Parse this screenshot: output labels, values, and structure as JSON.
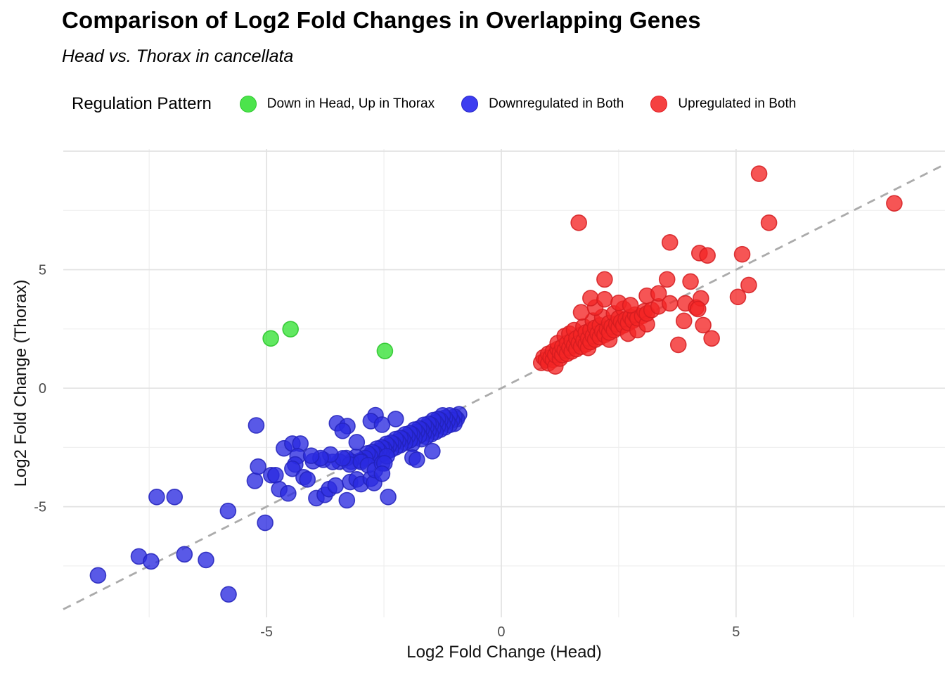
{
  "header": {
    "title": "Comparison of Log2 Fold Changes in Overlapping Genes",
    "subtitle": "Head vs. Thorax in cancellata"
  },
  "legend": {
    "title": "Regulation Pattern",
    "items": [
      {
        "label": "Down in Head, Up in Thorax",
        "color": "#4ce44c",
        "stroke": "#2fca2f"
      },
      {
        "label": "Downregulated in Both",
        "color": "#3d3df0",
        "stroke": "#2424c8"
      },
      {
        "label": "Upregulated in Both",
        "color": "#f54141",
        "stroke": "#e11d24"
      }
    ]
  },
  "colors": {
    "grid_major": "#e2e2e2",
    "grid_minor": "#efefef",
    "identity_line": "#ababab",
    "tick_text": "#4d4d4d",
    "green": "#35e135",
    "blue": "#2a2ae0",
    "red": "#f42525"
  },
  "chart_data": {
    "type": "scatter",
    "title": "Comparison of Log2 Fold Changes in Overlapping Genes",
    "subtitle": "Head vs. Thorax in cancellata",
    "xlabel": "Log2 Fold Change (Head)",
    "ylabel": "Log2 Fold Change (Thorax)",
    "xlim": [
      -9.33,
      9.45
    ],
    "ylim": [
      -9.67,
      10.09
    ],
    "x_ticks": {
      "values": [
        -5,
        0,
        5
      ],
      "labels": [
        "-5",
        "0",
        "5"
      ]
    },
    "y_ticks": {
      "values": [
        -5,
        0,
        5
      ],
      "labels": [
        "-5",
        "0",
        "5"
      ]
    },
    "x_major_gridlines": [
      -5,
      0,
      5
    ],
    "x_minor_gridlines": [
      -7.5,
      -2.5,
      2.5,
      7.5
    ],
    "y_major_gridlines": [
      -5,
      0,
      5,
      10
    ],
    "y_minor_gridlines": [
      -7.5,
      -2.5,
      2.5,
      7.5
    ],
    "grid": true,
    "legend_position": "top",
    "identity_line": {
      "equation": "y = x",
      "style": "dashed",
      "color": "#ababab"
    },
    "series": [
      {
        "name": "Down in Head, Up in Thorax",
        "fill": "#35e135",
        "stroke": "#28c428",
        "points": [
          [
            -4.91,
            2.1
          ],
          [
            -4.49,
            2.49
          ],
          [
            -2.48,
            1.57
          ]
        ]
      },
      {
        "name": "Downregulated in Both",
        "fill": "#2a2ae0",
        "stroke": "#2222bb",
        "points": [
          [
            -0.9,
            -1.1
          ],
          [
            -0.95,
            -1.3
          ],
          [
            -1.0,
            -1.2
          ],
          [
            -1.0,
            -1.5
          ],
          [
            -1.05,
            -1.35
          ],
          [
            -1.1,
            -1.15
          ],
          [
            -1.1,
            -1.55
          ],
          [
            -1.15,
            -1.4
          ],
          [
            -1.2,
            -1.25
          ],
          [
            -1.2,
            -1.65
          ],
          [
            -1.25,
            -1.15
          ],
          [
            -1.25,
            -1.5
          ],
          [
            -1.3,
            -1.35
          ],
          [
            -1.3,
            -1.75
          ],
          [
            -1.35,
            -1.3
          ],
          [
            -1.35,
            -1.6
          ],
          [
            -1.4,
            -1.45
          ],
          [
            -1.4,
            -1.85
          ],
          [
            -1.45,
            -1.35
          ],
          [
            -1.45,
            -1.7
          ],
          [
            -1.5,
            -1.55
          ],
          [
            -1.5,
            -1.95
          ],
          [
            -1.55,
            -1.5
          ],
          [
            -1.55,
            -1.8
          ],
          [
            -1.6,
            -1.65
          ],
          [
            -1.6,
            -2.05
          ],
          [
            -1.65,
            -1.55
          ],
          [
            -1.65,
            -1.9
          ],
          [
            -1.7,
            -1.75
          ],
          [
            -1.7,
            -2.15
          ],
          [
            -1.75,
            -1.7
          ],
          [
            -1.75,
            -2.0
          ],
          [
            -1.8,
            -1.85
          ],
          [
            -1.85,
            -1.75
          ],
          [
            -1.85,
            -2.1
          ],
          [
            -1.9,
            -1.95
          ],
          [
            -1.9,
            -2.35
          ],
          [
            -1.95,
            -1.9
          ],
          [
            -1.95,
            -2.2
          ],
          [
            -2.0,
            -2.05
          ],
          [
            -2.05,
            -1.95
          ],
          [
            -2.05,
            -2.3
          ],
          [
            -2.1,
            -2.15
          ],
          [
            -2.15,
            -2.1
          ],
          [
            -2.15,
            -2.4
          ],
          [
            -2.2,
            -2.25
          ],
          [
            -2.25,
            -2.15
          ],
          [
            -2.25,
            -2.5
          ],
          [
            -2.3,
            -2.35
          ],
          [
            -2.35,
            -2.3
          ],
          [
            -2.35,
            -2.6
          ],
          [
            -2.4,
            -2.45
          ],
          [
            -2.45,
            -2.35
          ],
          [
            -2.45,
            -2.7
          ],
          [
            -2.5,
            -2.55
          ],
          [
            -2.55,
            -2.5
          ],
          [
            -2.55,
            -2.8
          ],
          [
            -2.6,
            -2.65
          ],
          [
            -2.65,
            -2.55
          ],
          [
            -2.65,
            -2.9
          ],
          [
            -2.7,
            -2.75
          ],
          [
            -2.75,
            -2.7
          ],
          [
            -2.8,
            -2.85
          ],
          [
            -2.85,
            -2.75
          ],
          [
            -2.9,
            -2.95
          ],
          [
            -3.0,
            -3.05
          ],
          [
            -3.1,
            -2.9
          ],
          [
            -3.2,
            -3.1
          ],
          [
            -3.3,
            -2.95
          ],
          [
            -3.45,
            -3.1
          ],
          [
            -5.22,
            -1.57
          ],
          [
            -4.63,
            -2.54
          ],
          [
            -4.45,
            -2.34
          ],
          [
            -4.28,
            -2.34
          ],
          [
            -3.5,
            -1.48
          ],
          [
            -3.28,
            -1.6
          ],
          [
            -3.38,
            -1.8
          ],
          [
            -2.68,
            -1.14
          ],
          [
            -2.25,
            -1.3
          ],
          [
            -2.78,
            -1.39
          ],
          [
            -2.54,
            -1.54
          ],
          [
            -4.34,
            -2.87
          ],
          [
            -4.39,
            -3.22
          ],
          [
            -4.01,
            -3.08
          ],
          [
            -3.79,
            -3.02
          ],
          [
            -3.59,
            -3.11
          ],
          [
            -3.08,
            -2.28
          ],
          [
            -5.25,
            -3.91
          ],
          [
            -5.18,
            -3.31
          ],
          [
            -4.9,
            -3.67
          ],
          [
            -4.81,
            -3.67
          ],
          [
            -4.73,
            -4.26
          ],
          [
            -4.54,
            -4.44
          ],
          [
            -4.45,
            -3.4
          ],
          [
            -4.21,
            -3.76
          ],
          [
            -4.13,
            -3.85
          ],
          [
            -3.94,
            -4.64
          ],
          [
            -3.76,
            -4.5
          ],
          [
            -3.67,
            -4.26
          ],
          [
            -3.53,
            -4.11
          ],
          [
            -3.29,
            -4.73
          ],
          [
            -3.22,
            -3.96
          ],
          [
            -3.08,
            -3.85
          ],
          [
            -2.99,
            -4.05
          ],
          [
            -2.78,
            -3.82
          ],
          [
            -2.71,
            -4.0
          ],
          [
            -2.41,
            -4.59
          ],
          [
            -3.23,
            -3.22
          ],
          [
            -3.38,
            -2.96
          ],
          [
            -2.99,
            -3.11
          ],
          [
            -2.84,
            -3.25
          ],
          [
            -2.69,
            -3.46
          ],
          [
            -2.54,
            -3.17
          ],
          [
            -2.44,
            -2.87
          ],
          [
            -2.49,
            -3.17
          ],
          [
            -2.54,
            -3.61
          ],
          [
            -1.89,
            -2.93
          ],
          [
            -1.8,
            -3.02
          ],
          [
            -1.47,
            -2.66
          ],
          [
            -3.64,
            -2.8
          ],
          [
            -3.85,
            -2.95
          ],
          [
            -4.05,
            -2.85
          ],
          [
            -8.59,
            -7.9
          ],
          [
            -7.72,
            -7.1
          ],
          [
            -7.46,
            -7.31
          ],
          [
            -6.75,
            -7.01
          ],
          [
            -6.29,
            -7.25
          ],
          [
            -5.81,
            -8.7
          ],
          [
            -5.03,
            -5.68
          ],
          [
            -5.82,
            -5.18
          ],
          [
            -7.34,
            -4.59
          ],
          [
            -6.96,
            -4.59
          ]
        ]
      },
      {
        "name": "Upregulated in Both",
        "fill": "#f42525",
        "stroke": "#d41c20",
        "points": [
          [
            0.85,
            1.07
          ],
          [
            0.9,
            1.3
          ],
          [
            0.95,
            1.2
          ],
          [
            1.0,
            1.05
          ],
          [
            1.0,
            1.45
          ],
          [
            1.05,
            1.3
          ],
          [
            1.1,
            1.2
          ],
          [
            1.1,
            1.55
          ],
          [
            1.15,
            0.92
          ],
          [
            1.15,
            1.4
          ],
          [
            1.2,
            1.65
          ],
          [
            1.2,
            1.9
          ],
          [
            1.25,
            1.25
          ],
          [
            1.25,
            1.5
          ],
          [
            1.3,
            1.4
          ],
          [
            1.3,
            1.75
          ],
          [
            1.35,
            1.6
          ],
          [
            1.35,
            2.2
          ],
          [
            1.4,
            1.45
          ],
          [
            1.4,
            1.9
          ],
          [
            1.45,
            1.7
          ],
          [
            1.45,
            2.3
          ],
          [
            1.5,
            1.55
          ],
          [
            1.5,
            2.0
          ],
          [
            1.55,
            1.8
          ],
          [
            1.55,
            2.45
          ],
          [
            1.6,
            1.65
          ],
          [
            1.6,
            2.1
          ],
          [
            1.65,
            1.9
          ],
          [
            1.7,
            1.75
          ],
          [
            1.7,
            2.25
          ],
          [
            1.75,
            2.0
          ],
          [
            1.75,
            2.6
          ],
          [
            1.8,
            1.85
          ],
          [
            1.8,
            2.35
          ],
          [
            1.85,
            1.7
          ],
          [
            1.85,
            2.1
          ],
          [
            1.9,
            1.95
          ],
          [
            1.9,
            2.45
          ],
          [
            1.95,
            2.2
          ],
          [
            1.95,
            2.85
          ],
          [
            2.0,
            2.05
          ],
          [
            2.0,
            2.55
          ],
          [
            2.05,
            2.3
          ],
          [
            2.1,
            2.15
          ],
          [
            2.1,
            2.65
          ],
          [
            2.15,
            2.4
          ],
          [
            2.15,
            3.0
          ],
          [
            2.2,
            2.25
          ],
          [
            2.25,
            2.5
          ],
          [
            2.3,
            2.05
          ],
          [
            2.3,
            2.35
          ],
          [
            2.3,
            2.75
          ],
          [
            2.35,
            2.6
          ],
          [
            2.4,
            2.45
          ],
          [
            2.4,
            3.15
          ],
          [
            2.45,
            2.7
          ],
          [
            2.5,
            2.55
          ],
          [
            2.5,
            2.95
          ],
          [
            2.55,
            2.8
          ],
          [
            2.6,
            2.65
          ],
          [
            2.6,
            3.35
          ],
          [
            2.65,
            2.9
          ],
          [
            2.7,
            2.3
          ],
          [
            2.7,
            2.75
          ],
          [
            2.75,
            3.0
          ],
          [
            2.8,
            2.85
          ],
          [
            2.85,
            3.1
          ],
          [
            2.9,
            2.45
          ],
          [
            2.9,
            2.95
          ],
          [
            3.0,
            3.05
          ],
          [
            3.05,
            3.25
          ],
          [
            3.1,
            2.7
          ],
          [
            3.1,
            3.15
          ],
          [
            3.2,
            3.3
          ],
          [
            3.35,
            3.45
          ],
          [
            1.7,
            3.2
          ],
          [
            2.0,
            3.4
          ],
          [
            1.9,
            3.8
          ],
          [
            2.2,
            3.75
          ],
          [
            2.5,
            3.6
          ],
          [
            2.75,
            3.5
          ],
          [
            3.1,
            3.9
          ],
          [
            3.35,
            4.0
          ],
          [
            3.59,
            3.58
          ],
          [
            3.92,
            3.58
          ],
          [
            4.15,
            3.4
          ],
          [
            4.25,
            3.79
          ],
          [
            5.04,
            3.85
          ],
          [
            4.19,
            3.34
          ],
          [
            3.89,
            2.84
          ],
          [
            4.3,
            2.66
          ],
          [
            4.48,
            2.1
          ],
          [
            3.77,
            1.83
          ],
          [
            2.2,
            4.59
          ],
          [
            3.53,
            4.59
          ],
          [
            4.03,
            4.5
          ],
          [
            5.27,
            4.35
          ],
          [
            3.59,
            6.15
          ],
          [
            4.22,
            5.7
          ],
          [
            4.39,
            5.6
          ],
          [
            5.13,
            5.65
          ],
          [
            1.65,
            6.98
          ],
          [
            5.7,
            6.98
          ],
          [
            5.49,
            9.05
          ],
          [
            8.37,
            7.8
          ]
        ]
      }
    ]
  }
}
